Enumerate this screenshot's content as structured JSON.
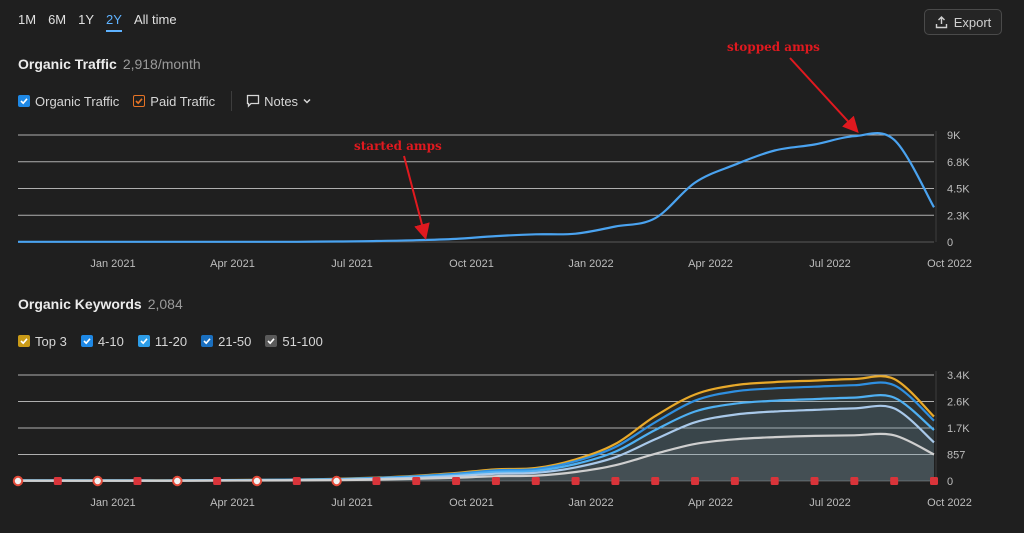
{
  "range_tabs": [
    "1M",
    "6M",
    "1Y",
    "2Y",
    "All time"
  ],
  "active_range": "2Y",
  "export_label": "Export",
  "traffic": {
    "title": "Organic Traffic",
    "subtitle": "2,918/month",
    "legend": [
      {
        "label": "Organic Traffic",
        "color": "#1e88e5",
        "checked": true
      },
      {
        "label": "Paid Traffic",
        "color": "#e57325",
        "checked": true
      }
    ],
    "notes_label": "Notes"
  },
  "keywords": {
    "title": "Organic Keywords",
    "subtitle": "2,084",
    "legend": [
      {
        "label": "Top 3",
        "color": "#c99a17"
      },
      {
        "label": "4-10",
        "color": "#1e88e5"
      },
      {
        "label": "11-20",
        "color": "#2d9de8"
      },
      {
        "label": "21-50",
        "color": "#1a6fbf"
      },
      {
        "label": "51-100",
        "color": "#5a5a5a"
      }
    ]
  },
  "annotations": {
    "started": "started amps",
    "stopped": "stopped amps"
  },
  "chart_data": [
    {
      "type": "line",
      "x": [
        "2020-11",
        "2020-12",
        "2021-01",
        "2021-02",
        "2021-03",
        "2021-04",
        "2021-05",
        "2021-06",
        "2021-07",
        "2021-08",
        "2021-09",
        "2021-10",
        "2021-11",
        "2021-12",
        "2022-01",
        "2022-02",
        "2022-03",
        "2022-04",
        "2022-05",
        "2022-06",
        "2022-07",
        "2022-08",
        "2022-09",
        "2022-10"
      ],
      "x_ticks": [
        "Jan 2021",
        "Apr 2021",
        "Jul 2021",
        "Oct 2021",
        "Jan 2022",
        "Apr 2022",
        "Jul 2022",
        "Oct 2022"
      ],
      "series": [
        {
          "name": "Organic Traffic",
          "color": "#4aa3f0",
          "values": [
            20,
            20,
            20,
            20,
            20,
            20,
            20,
            20,
            40,
            80,
            150,
            260,
            500,
            650,
            700,
            1300,
            2000,
            5000,
            6500,
            7700,
            8200,
            8900,
            8600,
            2918
          ]
        }
      ],
      "y_ticks": [
        "0",
        "2.3K",
        "4.5K",
        "6.8K",
        "9K"
      ],
      "ylim": [
        0,
        9000
      ]
    },
    {
      "type": "area",
      "x": [
        "2020-11",
        "2020-12",
        "2021-01",
        "2021-02",
        "2021-03",
        "2021-04",
        "2021-05",
        "2021-06",
        "2021-07",
        "2021-08",
        "2021-09",
        "2021-10",
        "2021-11",
        "2021-12",
        "2022-01",
        "2022-02",
        "2022-03",
        "2022-04",
        "2022-05",
        "2022-06",
        "2022-07",
        "2022-08",
        "2022-09",
        "2022-10"
      ],
      "x_ticks": [
        "Jan 2021",
        "Apr 2021",
        "Jul 2021",
        "Oct 2021",
        "Jan 2022",
        "Apr 2022",
        "Jul 2022",
        "Oct 2022"
      ],
      "series": [
        {
          "name": "Top 3",
          "color": "#e8a92a",
          "values": [
            20,
            20,
            20,
            20,
            20,
            30,
            40,
            50,
            70,
            110,
            170,
            260,
            380,
            420,
            700,
            1200,
            2100,
            2800,
            3100,
            3200,
            3250,
            3300,
            3300,
            2084
          ]
        },
        {
          "name": "4-10",
          "color": "#2f8fe0",
          "values": [
            18,
            18,
            18,
            18,
            18,
            27,
            36,
            45,
            63,
            100,
            155,
            235,
            345,
            385,
            640,
            1100,
            1900,
            2600,
            2900,
            3000,
            3050,
            3100,
            3100,
            1950
          ]
        },
        {
          "name": "11-20",
          "color": "#4fb0f2",
          "values": [
            15,
            15,
            15,
            15,
            15,
            22,
            30,
            38,
            53,
            85,
            130,
            200,
            295,
            330,
            550,
            950,
            1650,
            2250,
            2500,
            2600,
            2650,
            2700,
            2700,
            1650
          ]
        },
        {
          "name": "21-50",
          "color": "#a9c9ea",
          "values": [
            12,
            12,
            12,
            12,
            12,
            18,
            24,
            30,
            42,
            68,
            105,
            160,
            235,
            265,
            440,
            770,
            1350,
            1900,
            2150,
            2250,
            2300,
            2350,
            2350,
            1250
          ]
        },
        {
          "name": "51-100",
          "color": "#cfcfcf",
          "values": [
            8,
            8,
            8,
            8,
            8,
            12,
            16,
            20,
            28,
            45,
            70,
            105,
            155,
            175,
            290,
            510,
            880,
            1200,
            1350,
            1420,
            1460,
            1480,
            1480,
            857
          ]
        }
      ],
      "y_ticks": [
        "0",
        "857",
        "1.7K",
        "2.6K",
        "3.4K"
      ],
      "ylim": [
        0,
        3430
      ]
    }
  ]
}
